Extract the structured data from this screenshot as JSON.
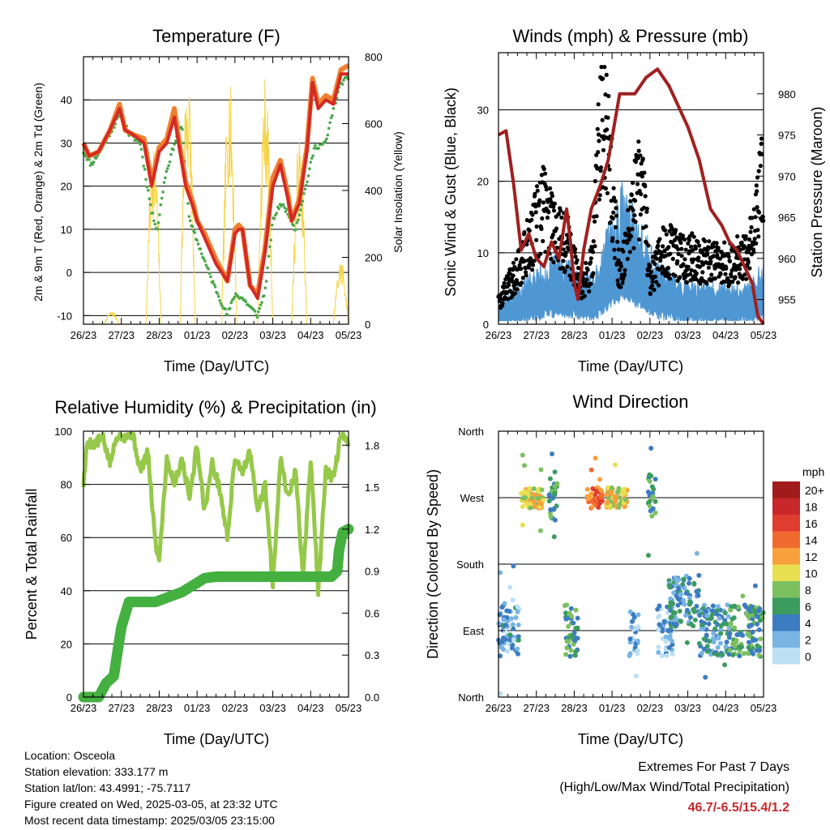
{
  "x_ticks": [
    "26/23",
    "27/23",
    "28/23",
    "01/23",
    "02/23",
    "03/23",
    "04/23",
    "05/23"
  ],
  "colors": {
    "temp2m": "#d42a24",
    "temp9m": "#f08030",
    "dewpoint": "#4aa84a",
    "solar": "#f5d44a",
    "sonic": "#4f97d3",
    "gust": "#000000",
    "pressure": "#a02020",
    "rh": "#96c84a",
    "precip": "#44b040"
  },
  "chart_data": [
    {
      "type": "line",
      "title": "Temperature (F)",
      "xlabel": "Time (Day/UTC)",
      "ylabel": "2m & 9m T (Red, Orange) & 2m Td (Green)",
      "y2label": "Solar Insolation (Yellow)",
      "ylim": [
        -12,
        50
      ],
      "y2lim": [
        0,
        800
      ],
      "yticks": [
        "-10",
        "0",
        "10",
        "20",
        "30",
        "40"
      ],
      "y2ticks": [
        "0",
        "200",
        "400",
        "600",
        "800"
      ],
      "series": [
        {
          "name": "2m T",
          "axis": "left",
          "color": "#d42a24",
          "x": [
            0,
            0.15,
            0.4,
            0.7,
            0.95,
            1.1,
            1.3,
            1.6,
            1.8,
            2.0,
            2.2,
            2.4,
            2.55,
            2.7,
            2.9,
            3.0,
            3.2,
            3.5,
            3.8,
            4.0,
            4.1,
            4.2,
            4.4,
            4.6,
            4.8,
            5.0,
            5.2,
            5.4,
            5.5,
            5.7,
            5.9,
            6.05,
            6.2,
            6.4,
            6.6,
            6.8,
            7.0
          ],
          "y": [
            30,
            27,
            28,
            33,
            38,
            33,
            32,
            30,
            20,
            28,
            30,
            36,
            28,
            20,
            15,
            12,
            8,
            2,
            -2,
            9,
            10,
            10,
            -3,
            -6,
            5,
            20,
            25,
            17,
            12,
            16,
            28,
            44,
            38,
            40,
            39,
            46,
            46
          ]
        },
        {
          "name": "9m T",
          "axis": "left",
          "color": "#f08030",
          "x": [
            0,
            0.15,
            0.4,
            0.7,
            0.95,
            1.1,
            1.3,
            1.6,
            1.8,
            2.0,
            2.2,
            2.4,
            2.55,
            2.7,
            2.9,
            3.0,
            3.2,
            3.5,
            3.8,
            4.0,
            4.1,
            4.2,
            4.4,
            4.6,
            4.8,
            5.0,
            5.2,
            5.4,
            5.5,
            5.7,
            5.9,
            6.05,
            6.2,
            6.4,
            6.6,
            6.8,
            7.0
          ],
          "y": [
            30,
            27,
            28,
            33,
            39,
            33,
            32,
            31,
            21,
            29,
            31,
            38,
            29,
            21,
            16,
            12,
            9,
            3,
            -2,
            10,
            11,
            10,
            -3,
            -5,
            6,
            22,
            26,
            18,
            12,
            17,
            29,
            45,
            39,
            41,
            40,
            47,
            48
          ]
        },
        {
          "name": "2m Td",
          "axis": "left",
          "color": "#4aa84a",
          "x": [
            0,
            0.2,
            0.5,
            0.8,
            1.0,
            1.2,
            1.5,
            1.8,
            1.95,
            2.15,
            2.4,
            2.6,
            2.8,
            3.1,
            3.4,
            3.6,
            3.8,
            4.0,
            4.2,
            4.4,
            4.6,
            4.8,
            5.0,
            5.2,
            5.4,
            5.6,
            5.9,
            6.1,
            6.4,
            6.6,
            6.8,
            7.0
          ],
          "y": [
            28,
            25,
            29,
            34,
            37,
            32,
            30,
            14,
            10,
            22,
            30,
            34,
            12,
            5,
            -2,
            -6,
            -10,
            -5,
            -6,
            -8,
            -10,
            -4,
            12,
            16,
            14,
            10,
            21,
            29,
            30,
            38,
            44,
            45
          ]
        },
        {
          "name": "Solar Insolation",
          "axis": "right",
          "color": "#f5d44a",
          "daily_peaks": [
            40,
            580,
            785,
            750,
            750,
            560,
            200
          ],
          "peak_at": [
            "26/23+0.75",
            "27/23+0.85",
            "28/23+0.75",
            "01/23+0.85",
            "02/23+0.8",
            "03/23+0.7",
            "04/23+0.8"
          ]
        }
      ]
    },
    {
      "type": "line",
      "title": "Winds (mph) & Pressure (mb)",
      "xlabel": "Time (Day/UTC)",
      "ylabel": "Sonic Wind & Gust (Blue, Black)",
      "y2label": "Station Pressure (Maroon)",
      "ylim": [
        0,
        38
      ],
      "y2lim": [
        952,
        985
      ],
      "yticks": [
        "0",
        "10",
        "20",
        "30"
      ],
      "y2ticks": [
        "955",
        "960",
        "965",
        "970",
        "975",
        "980"
      ],
      "series": [
        {
          "name": "Station Pressure",
          "axis": "right",
          "color": "#a02020",
          "x": [
            0,
            0.2,
            0.4,
            0.6,
            0.8,
            1.0,
            1.2,
            1.4,
            1.6,
            1.8,
            1.9,
            2.0,
            2.1,
            2.25,
            2.45,
            2.7,
            2.9,
            3.05,
            3.2,
            3.4,
            3.6,
            3.9,
            4.2,
            4.5,
            4.7,
            5.0,
            5.3,
            5.6,
            5.9,
            6.1,
            6.3,
            6.5,
            6.7,
            6.85,
            7.0
          ],
          "y": [
            975,
            975.5,
            969,
            961,
            963,
            960,
            959,
            962,
            960,
            966,
            962,
            957,
            955,
            961,
            966,
            969,
            972,
            976,
            980,
            980,
            980,
            982,
            983,
            981,
            979,
            976,
            972,
            966,
            964,
            962,
            961,
            959,
            957,
            953,
            952
          ]
        },
        {
          "name": "Sonic Wind",
          "axis": "left",
          "color": "#4f97d3",
          "approx_mean_by_day": [
            4,
            6,
            6,
            10,
            7,
            4,
            5
          ]
        },
        {
          "name": "Gust",
          "axis": "left",
          "color": "#000000",
          "daily_max": [
            14,
            28,
            22,
            36,
            23,
            21,
            27
          ]
        }
      ]
    },
    {
      "type": "line",
      "title": "Relative Humidity (%) & Precipitation (in)",
      "xlabel": "Time (Day/UTC)",
      "ylabel": "Percent & Total Rainfall",
      "ylim": [
        0,
        100
      ],
      "y2lim": [
        0,
        1.9
      ],
      "yticks": [
        "0",
        "20",
        "40",
        "60",
        "80",
        "100"
      ],
      "y2ticks": [
        "0.0",
        "0.3",
        "0.6",
        "0.9",
        "1.2",
        "1.5",
        "1.8"
      ],
      "series": [
        {
          "name": "Relative Humidity",
          "axis": "left",
          "color": "#96c84a",
          "x": [
            0,
            0.1,
            0.3,
            0.5,
            0.7,
            0.9,
            1.1,
            1.3,
            1.5,
            1.7,
            1.9,
            2.0,
            2.2,
            2.4,
            2.6,
            2.8,
            3.0,
            3.2,
            3.4,
            3.6,
            3.8,
            4.0,
            4.2,
            4.4,
            4.6,
            4.8,
            5.0,
            5.2,
            5.4,
            5.6,
            5.8,
            6.0,
            6.2,
            6.4,
            6.6,
            6.8,
            7.0
          ],
          "y": [
            80,
            96,
            95,
            98,
            88,
            99,
            98,
            99,
            85,
            92,
            58,
            52,
            90,
            80,
            90,
            75,
            95,
            70,
            88,
            78,
            60,
            90,
            85,
            92,
            70,
            80,
            42,
            90,
            75,
            85,
            45,
            90,
            40,
            85,
            82,
            99,
            95
          ]
        },
        {
          "name": "Total Precipitation",
          "axis": "right",
          "color": "#44b040",
          "x": [
            0,
            0.4,
            0.6,
            0.8,
            1.0,
            1.2,
            1.5,
            1.9,
            2.1,
            2.3,
            2.6,
            2.9,
            3.2,
            3.5,
            4.0,
            4.5,
            5.0,
            5.5,
            6.0,
            6.55,
            6.7,
            6.75,
            6.85,
            7.0
          ],
          "y": [
            0,
            0,
            0.1,
            0.15,
            0.5,
            0.68,
            0.68,
            0.68,
            0.7,
            0.72,
            0.75,
            0.8,
            0.85,
            0.86,
            0.86,
            0.86,
            0.86,
            0.86,
            0.86,
            0.86,
            0.9,
            1.05,
            1.18,
            1.2
          ]
        }
      ]
    },
    {
      "type": "scatter",
      "title": "Wind Direction",
      "xlabel": "Time (Day/UTC)",
      "ylabel": "Direction (Colored By Speed)",
      "yticks": [
        "North",
        "East",
        "South",
        "West",
        "North"
      ],
      "colorbar": {
        "title": "mph",
        "labels": [
          "20+",
          "18",
          "16",
          "14",
          "12",
          "10",
          "8",
          "6",
          "4",
          "2",
          "0"
        ],
        "colors": [
          "#a01c1c",
          "#c8282a",
          "#e03c30",
          "#f06a30",
          "#f8a03c",
          "#e8e050",
          "#7cc060",
          "#3c9c60",
          "#3c7cc0",
          "#78b4e4",
          "#bce0f4"
        ]
      },
      "clusters": [
        {
          "day_start": 0,
          "day_end": 0.55,
          "direction": "East",
          "speed_mph": 3
        },
        {
          "day_start": 0.6,
          "day_end": 1.2,
          "direction": "West",
          "speed_mph": 10
        },
        {
          "day_start": 1.3,
          "day_end": 1.55,
          "direction": "West",
          "speed_mph": 6
        },
        {
          "day_start": 1.75,
          "day_end": 2.1,
          "direction": "East",
          "speed_mph": 6
        },
        {
          "day_start": 2.35,
          "day_end": 2.75,
          "direction": "West",
          "speed_mph": 14
        },
        {
          "day_start": 2.85,
          "day_end": 3.4,
          "direction": "West",
          "speed_mph": 10
        },
        {
          "day_start": 3.45,
          "day_end": 3.7,
          "direction": "East",
          "speed_mph": 2
        },
        {
          "day_start": 3.95,
          "day_end": 4.15,
          "direction": "West",
          "speed_mph": 6
        },
        {
          "day_start": 4.2,
          "day_end": 4.6,
          "direction": "East",
          "speed_mph": 2
        },
        {
          "day_start": 4.5,
          "day_end": 5.3,
          "direction": "SouthEast",
          "speed_mph": 4
        },
        {
          "day_start": 5.3,
          "day_end": 6.1,
          "direction": "East",
          "speed_mph": 4
        },
        {
          "day_start": 6.1,
          "day_end": 7.0,
          "direction": "East",
          "speed_mph": 6
        }
      ]
    }
  ],
  "info": {
    "location": "Location: Osceola",
    "elevation": "Station elevation: 333.177 m",
    "latlon": "Station lat/lon: 43.4991; -75.7117",
    "created": "Figure created on Wed, 2025-03-05, at 23:32 UTC",
    "recent": "Most recent data timestamp: 2025/03/05 23:15:00"
  },
  "extremes": {
    "title": "Extremes For Past 7 Days",
    "subtitle": "(High/Low/Max Wind/Total Precipitation)",
    "values": "46.7/-6.5/15.4/1.2"
  }
}
